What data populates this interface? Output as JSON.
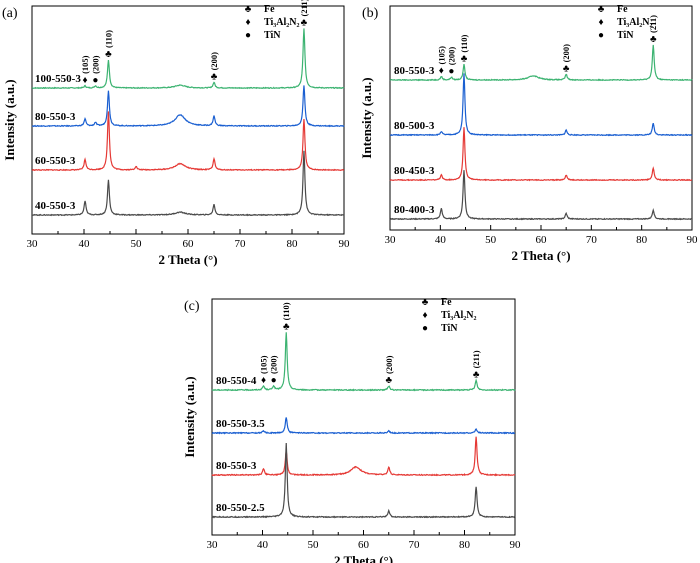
{
  "chart_data": [
    {
      "type": "line",
      "panel_label": "(a)",
      "xlabel": "2 Theta (°)",
      "ylabel": "Intensity (a.u.)",
      "xlim": [
        30,
        90
      ],
      "xticks": [
        "30",
        "40",
        "50",
        "60",
        "70",
        "80",
        "90"
      ],
      "legend": [
        {
          "symbol": "♣",
          "label": "Fe"
        },
        {
          "symbol": "♦",
          "label": "Ti₃Al₂N₂"
        },
        {
          "symbol": "●",
          "label": "TiN"
        }
      ],
      "peak_annotations": [
        {
          "x": 40.2,
          "symbol": "♦",
          "label": "(105)"
        },
        {
          "x": 42.2,
          "symbol": "●",
          "label": "(200)"
        },
        {
          "x": 44.7,
          "symbol": "♣",
          "label": "(110)"
        },
        {
          "x": 65.0,
          "symbol": "♣",
          "label": "(200)"
        },
        {
          "x": 82.3,
          "symbol": "♣",
          "label": "(211)"
        }
      ],
      "series": [
        {
          "name": "100-550-3",
          "color": "#3cb371",
          "peaks": [
            [
              40.2,
              0.03
            ],
            [
              42.2,
              0.03
            ],
            [
              44.7,
              0.4
            ],
            [
              58.5,
              0.04
            ],
            [
              65.0,
              0.08
            ],
            [
              82.3,
              0.85
            ]
          ]
        },
        {
          "name": "80-550-3",
          "color": "#1a5fd1",
          "peaks": [
            [
              40.2,
              0.1
            ],
            [
              42.2,
              0.05
            ],
            [
              44.7,
              0.5
            ],
            [
              58.5,
              0.16
            ],
            [
              65.0,
              0.14
            ],
            [
              82.3,
              0.58
            ]
          ]
        },
        {
          "name": "60-550-3",
          "color": "#e53935",
          "peaks": [
            [
              40.2,
              0.15
            ],
            [
              44.7,
              0.84
            ],
            [
              50.0,
              0.05
            ],
            [
              58.5,
              0.09
            ],
            [
              65.0,
              0.16
            ],
            [
              82.3,
              0.73
            ]
          ]
        },
        {
          "name": "40-550-3",
          "color": "#4a4a4a",
          "peaks": [
            [
              40.2,
              0.2
            ],
            [
              44.7,
              0.5
            ],
            [
              58.5,
              0.04
            ],
            [
              65.0,
              0.15
            ],
            [
              82.3,
              0.92
            ]
          ]
        }
      ]
    },
    {
      "type": "line",
      "panel_label": "(b)",
      "xlabel": "2 Theta (°)",
      "ylabel": "Intensity (a.u.)",
      "xlim": [
        30,
        90
      ],
      "xticks": [
        "30",
        "40",
        "50",
        "60",
        "70",
        "80",
        "90"
      ],
      "legend": [
        {
          "symbol": "♣",
          "label": "Fe"
        },
        {
          "symbol": "♦",
          "label": "Ti₃Al₂N₂"
        },
        {
          "symbol": "●",
          "label": "TiN"
        }
      ],
      "peak_annotations": [
        {
          "x": 40.2,
          "symbol": "♦",
          "label": "(105)"
        },
        {
          "x": 42.2,
          "symbol": "●",
          "label": "(200)"
        },
        {
          "x": 44.7,
          "symbol": "♣",
          "label": "(110)"
        },
        {
          "x": 65.0,
          "symbol": "♣",
          "label": "(200)"
        },
        {
          "x": 82.3,
          "symbol": "♣",
          "label": "(211)"
        }
      ],
      "series": [
        {
          "name": "80-550-3",
          "color": "#3cb371",
          "peaks": [
            [
              40.2,
              0.05
            ],
            [
              42.2,
              0.04
            ],
            [
              44.7,
              0.22
            ],
            [
              58.5,
              0.06
            ],
            [
              65.0,
              0.08
            ],
            [
              82.3,
              0.5
            ]
          ]
        },
        {
          "name": "80-500-3",
          "color": "#1a5fd1",
          "peaks": [
            [
              40.2,
              0.05
            ],
            [
              44.7,
              0.88
            ],
            [
              65.0,
              0.07
            ],
            [
              82.3,
              0.17
            ]
          ]
        },
        {
          "name": "80-450-3",
          "color": "#e53935",
          "peaks": [
            [
              40.2,
              0.07
            ],
            [
              44.7,
              0.75
            ],
            [
              65.0,
              0.07
            ],
            [
              82.3,
              0.17
            ]
          ]
        },
        {
          "name": "80-400-3",
          "color": "#4a4a4a",
          "peaks": [
            [
              40.2,
              0.15
            ],
            [
              44.7,
              0.7
            ],
            [
              65.0,
              0.08
            ],
            [
              82.3,
              0.13
            ]
          ]
        }
      ]
    },
    {
      "type": "line",
      "panel_label": "(c)",
      "xlabel": "2 Theta (°)",
      "ylabel": "Intensity (a.u.)",
      "xlim": [
        30,
        90
      ],
      "xticks": [
        "30",
        "40",
        "50",
        "60",
        "70",
        "80",
        "90"
      ],
      "legend": [
        {
          "symbol": "♣",
          "label": "Fe"
        },
        {
          "symbol": "♦",
          "label": "Ti₃Al₂N₂"
        },
        {
          "symbol": "●",
          "label": "TiN"
        }
      ],
      "peak_annotations": [
        {
          "x": 40.2,
          "symbol": "♦",
          "label": "(105)"
        },
        {
          "x": 42.2,
          "symbol": "●",
          "label": "(200)"
        },
        {
          "x": 44.7,
          "symbol": "♣",
          "label": "(110)"
        },
        {
          "x": 65.0,
          "symbol": "♣",
          "label": "(200)"
        },
        {
          "x": 82.3,
          "symbol": "♣",
          "label": "(211)"
        }
      ],
      "series": [
        {
          "name": "80-550-4",
          "color": "#3cb371",
          "peaks": [
            [
              40.2,
              0.05
            ],
            [
              42.2,
              0.05
            ],
            [
              44.7,
              0.72
            ],
            [
              65.0,
              0.05
            ],
            [
              82.3,
              0.12
            ]
          ]
        },
        {
          "name": "80-550-3.5",
          "color": "#1a5fd1",
          "peaks": [
            [
              40.2,
              0.03
            ],
            [
              44.7,
              0.2
            ],
            [
              65.0,
              0.03
            ],
            [
              82.3,
              0.05
            ]
          ]
        },
        {
          "name": "80-550-3",
          "color": "#e53935",
          "peaks": [
            [
              40.2,
              0.08
            ],
            [
              44.7,
              0.3
            ],
            [
              58.5,
              0.1
            ],
            [
              65.0,
              0.1
            ],
            [
              82.3,
              0.48
            ]
          ]
        },
        {
          "name": "80-550-2.5",
          "color": "#4a4a4a",
          "peaks": [
            [
              44.7,
              0.92
            ],
            [
              65.0,
              0.08
            ],
            [
              82.3,
              0.38
            ]
          ]
        }
      ]
    }
  ]
}
